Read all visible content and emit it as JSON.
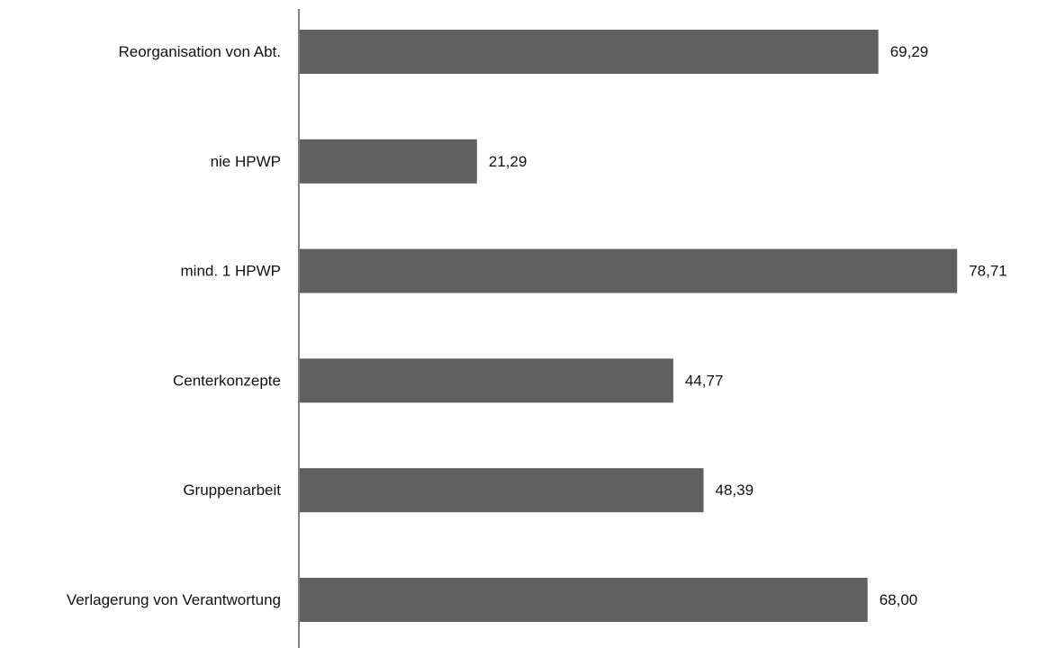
{
  "chart_data": {
    "type": "bar",
    "orientation": "horizontal",
    "categories": [
      "Reorganisation von Abt.",
      "nie HPWP",
      "mind. 1 HPWP",
      "Centerkonzepte",
      "Gruppenarbeit",
      "Verlagerung von Verantwortung"
    ],
    "values": [
      69.29,
      21.29,
      78.71,
      44.77,
      48.39,
      68.0
    ],
    "value_labels": [
      "69,29",
      "21,29",
      "78,71",
      "44,77",
      "48,39",
      "68,00"
    ],
    "title": "",
    "xlabel": "",
    "ylabel": "",
    "xlim": [
      0,
      84.5
    ],
    "grid": false,
    "legend": "none",
    "colors": {
      "bar": "#606060",
      "axis": "#808080",
      "text": "#111111",
      "background": "#ffffff"
    }
  }
}
